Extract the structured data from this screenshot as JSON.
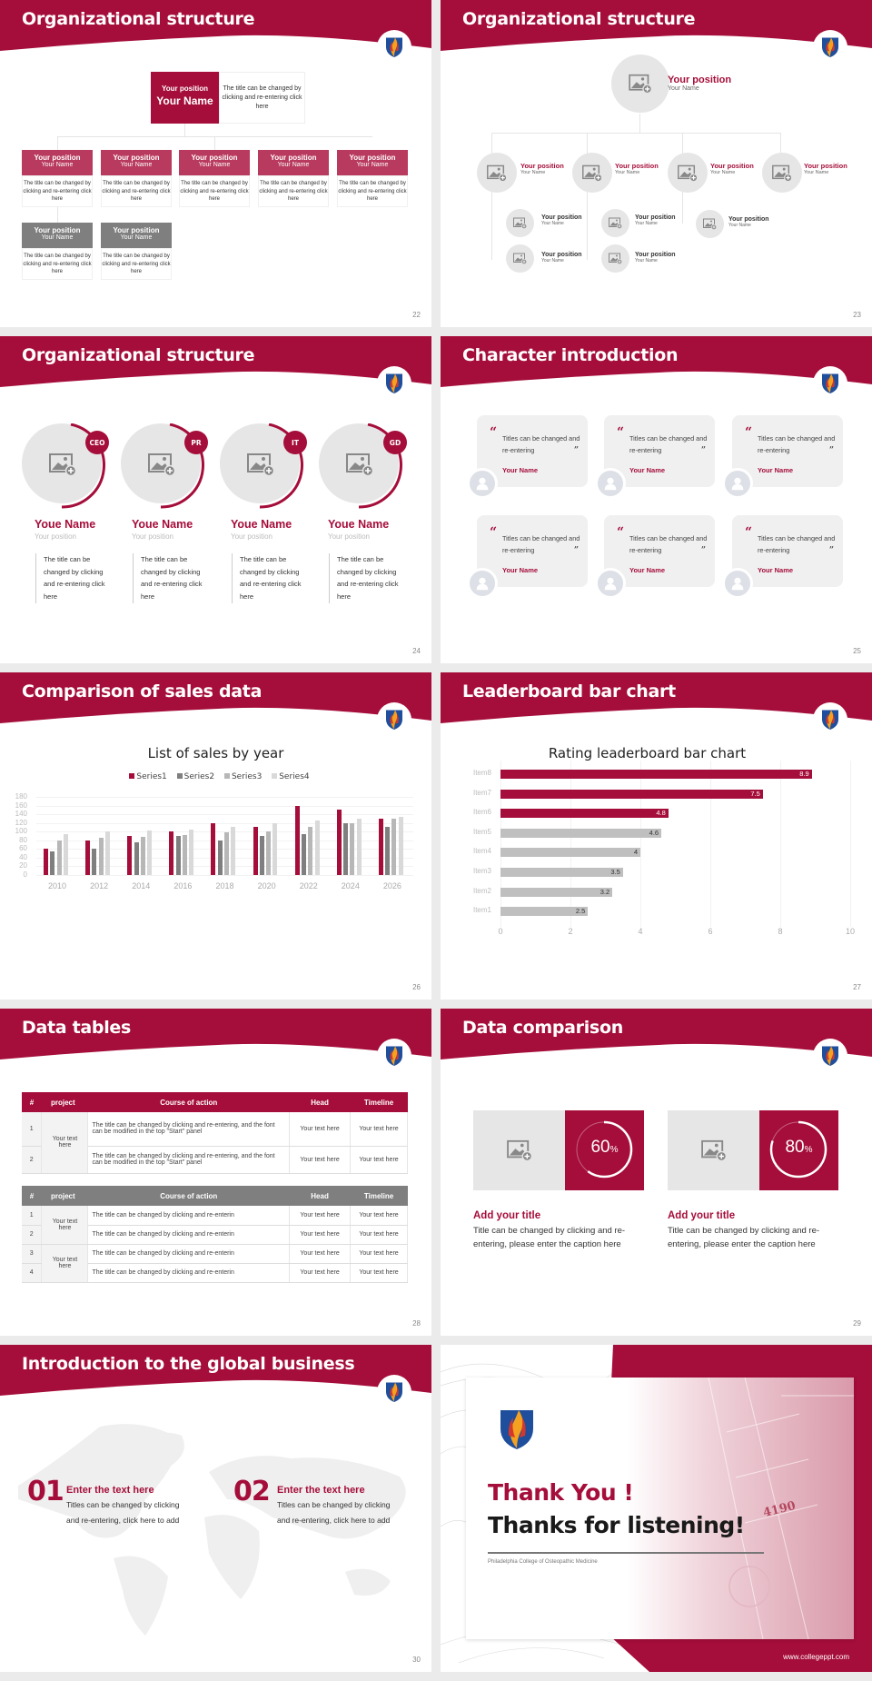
{
  "colors": {
    "brand": "#a50d3a",
    "brand_light": "#b83a5e",
    "gray_box": "#7f7f7f",
    "series": [
      "#a50d3a",
      "#7f7f7f",
      "#b7b7b7",
      "#d9d9d9"
    ]
  },
  "slides": [
    {
      "number": "22",
      "title": "Organizational structure",
      "top": {
        "position": "Your position",
        "name": "Your Name",
        "desc": "The title can be changed by clicking and re-entering click here"
      },
      "boxes": [
        {
          "position": "Your position",
          "name": "Your Name",
          "desc": "The title can be changed by clicking and re-entering click here"
        },
        {
          "position": "Your position",
          "name": "Your Name",
          "desc": "The title can be changed by clicking and re-entering click here"
        },
        {
          "position": "Your position",
          "name": "Your Name",
          "desc": "The title can be changed by clicking and re-entering click here"
        },
        {
          "position": "Your position",
          "name": "Your Name",
          "desc": "The title can be changed by clicking and re-entering click here"
        },
        {
          "position": "Your position",
          "name": "Your Name",
          "desc": "The title can be changed by clicking and re-entering click here"
        },
        {
          "position": "Your position",
          "name": "Your Name",
          "desc": "The title can be changed by clicking and re-entering click here"
        },
        {
          "position": "Your position",
          "name": "Your Name",
          "desc": "The title can be changed by clicking and re-entering click here"
        }
      ]
    },
    {
      "number": "23",
      "title": "Organizational structure",
      "top": {
        "position": "Your position",
        "name": "Your Name"
      },
      "level2": [
        {
          "position": "Your position",
          "name": "Your Name"
        },
        {
          "position": "Your position",
          "name": "Your Name"
        },
        {
          "position": "Your position",
          "name": "Your Name"
        },
        {
          "position": "Your position",
          "name": "Your Name"
        }
      ],
      "level3": [
        {
          "position": "Your position",
          "name": "Your Name"
        },
        {
          "position": "Your position",
          "name": "Your Name"
        },
        {
          "position": "Your position",
          "name": "Your Name"
        },
        {
          "position": "Your position",
          "name": "Your Name"
        },
        {
          "position": "Your position",
          "name": "Your Name"
        }
      ]
    },
    {
      "number": "24",
      "title": "Organizational structure",
      "people": [
        {
          "badge": "CEO",
          "name": "Youe Name",
          "position": "Your position",
          "desc": "The title can be changed by clicking and re-entering click here"
        },
        {
          "badge": "PR",
          "name": "Youe Name",
          "position": "Your position",
          "desc": "The title can be changed by clicking and re-entering click here"
        },
        {
          "badge": "IT",
          "name": "Youe Name",
          "position": "Your position",
          "desc": "The title can be changed by clicking and re-entering click here"
        },
        {
          "badge": "GD",
          "name": "Youe Name",
          "position": "Your position",
          "desc": "The title can be changed by clicking and re-entering click here"
        }
      ]
    },
    {
      "number": "25",
      "title": "Character introduction",
      "cards": [
        {
          "open_quote": "“",
          "text": "Titles can be changed and re-entering",
          "close_quote": "”",
          "name": "Your Name"
        },
        {
          "open_quote": "“",
          "text": "Titles can be changed and re-entering",
          "close_quote": "”",
          "name": "Your Name"
        },
        {
          "open_quote": "“",
          "text": "Titles can be changed and re-entering",
          "close_quote": "”",
          "name": "Your Name"
        },
        {
          "open_quote": "“",
          "text": "Titles can be changed and re-entering",
          "close_quote": "”",
          "name": "Your Name"
        },
        {
          "open_quote": "“",
          "text": "Titles can be changed and re-entering",
          "close_quote": "”",
          "name": "Your Name"
        },
        {
          "open_quote": "“",
          "text": "Titles can be changed and re-entering",
          "close_quote": "”",
          "name": "Your Name"
        }
      ]
    },
    {
      "number": "26",
      "title": "Comparison of sales data"
    },
    {
      "number": "27",
      "title": "Leaderboard bar chart"
    },
    {
      "number": "28",
      "title": "Data tables",
      "table1": {
        "headers": [
          "#",
          "project",
          "Course of action",
          "Head",
          "Timeline"
        ],
        "group": "Your text here",
        "rows": [
          {
            "n": "1",
            "action": "The title can be changed by clicking and re-entering, and the font can be modified in the top \"Start\" panel",
            "head": "Your text here",
            "timeline": "Your text here"
          },
          {
            "n": "2",
            "action": "The title can be changed by clicking and re-entering, and the font can be modified in the top \"Start\" panel",
            "head": "Your text here",
            "timeline": "Your text here"
          }
        ]
      },
      "table2": {
        "headers": [
          "#",
          "project",
          "Course of action",
          "Head",
          "Timeline"
        ],
        "groups": [
          "Your text here",
          "Your text here"
        ],
        "rows": [
          {
            "n": "1",
            "action": "The title can be changed by clicking and re-enterin",
            "head": "Your text here",
            "timeline": "Your text here"
          },
          {
            "n": "2",
            "action": "The title can be changed by clicking and re-enterin",
            "head": "Your text here",
            "timeline": "Your text here"
          },
          {
            "n": "3",
            "action": "The title can be changed by clicking and re-enterin",
            "head": "Your text here",
            "timeline": "Your text here"
          },
          {
            "n": "4",
            "action": "The title can be changed by clicking and re-enterin",
            "head": "Your text here",
            "timeline": "Your text here"
          }
        ]
      }
    },
    {
      "number": "29",
      "title": "Data comparison",
      "items": [
        {
          "value": "60",
          "unit": "%",
          "percent": 60,
          "title": "Add your title",
          "desc": "Title can be changed by clicking and re-entering, please enter the caption here"
        },
        {
          "value": "80",
          "unit": "%",
          "percent": 80,
          "title": "Add your title",
          "desc": "Title can be changed by clicking and re-entering, please enter the caption here"
        }
      ]
    },
    {
      "number": "30",
      "title": "Introduction to the global business",
      "items": [
        {
          "num": "01",
          "title": "Enter the text here",
          "desc": "Titles can be changed by clicking and re-entering, click here to add"
        },
        {
          "num": "02",
          "title": "Enter the text here",
          "desc": "Titles can be changed by clicking and re-entering, click here to add"
        }
      ]
    },
    {
      "thanks": "Thank You !",
      "listening": "Thanks for listening!",
      "college": "Philadelphia College of Osteopathic Medicine",
      "website": "www.collegeppt.com",
      "building_number": "4190"
    }
  ],
  "chart_data": [
    {
      "type": "bar",
      "title": "List of sales by year",
      "categories": [
        "2010",
        "2012",
        "2014",
        "2016",
        "2018",
        "2020",
        "2022",
        "2024",
        "2026"
      ],
      "series": [
        {
          "name": "Series1",
          "values": [
            60,
            80,
            90,
            100,
            120,
            110,
            160,
            150,
            130
          ]
        },
        {
          "name": "Series2",
          "values": [
            55,
            60,
            75,
            90,
            80,
            90,
            95,
            120,
            110
          ]
        },
        {
          "name": "Series3",
          "values": [
            80,
            85,
            88,
            92,
            98,
            100,
            110,
            120,
            130
          ]
        },
        {
          "name": "Series4",
          "values": [
            95,
            100,
            102,
            105,
            110,
            120,
            125,
            130,
            135
          ]
        }
      ],
      "yticks": [
        0,
        20,
        40,
        60,
        80,
        100,
        120,
        140,
        160,
        180
      ],
      "ylim": [
        0,
        180
      ],
      "xlabel": "",
      "ylabel": "",
      "legend_position": "top",
      "grid": true
    },
    {
      "type": "bar",
      "orientation": "horizontal",
      "title": "Rating leaderboard bar chart",
      "categories": [
        "Item8",
        "Item7",
        "Item6",
        "Item5",
        "Item4",
        "Item3",
        "Item2",
        "Item1"
      ],
      "values": [
        8.9,
        7.5,
        4.8,
        4.6,
        4,
        3.5,
        3.2,
        2.5
      ],
      "labels": [
        "8.9",
        "7.5",
        "4.8",
        "4.6",
        "4",
        "3.5",
        "3.2",
        "2.5"
      ],
      "highlight_top": 3,
      "xticks": [
        0,
        2,
        4,
        6,
        8,
        10
      ],
      "xlim": [
        0,
        10
      ],
      "xlabel": "",
      "ylabel": "",
      "grid": true
    }
  ]
}
